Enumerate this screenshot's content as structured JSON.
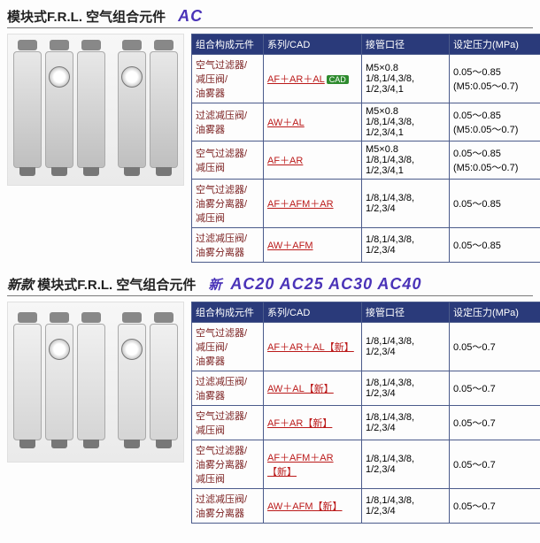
{
  "section1": {
    "title_prefix": "模块式F.R.L. 空气组合元件",
    "title_codes": "AC",
    "headers": [
      "组合构成元件",
      "系列/CAD",
      "接管口径",
      "设定压力(MPa)"
    ],
    "rows": [
      {
        "comp": "空气过滤器/\n减压阀/\n油雾器",
        "series": "AF＋AR＋AL",
        "cad": true,
        "port": "M5×0.8\n1/8,1/4,3/8,\n1/2,3/4,1",
        "press": "0.05～0.85\n(M5:0.05～0.7)"
      },
      {
        "comp": "过滤减压阀/\n油雾器",
        "series": "AW＋AL",
        "port": "M5×0.8\n1/8,1/4,3/8,\n1/2,3/4,1",
        "press": "0.05～0.85\n(M5:0.05～0.7)"
      },
      {
        "comp": "空气过滤器/\n减压阀",
        "series": "AF＋AR",
        "port": "M5×0.8\n1/8,1/4,3/8,\n1/2,3/4,1",
        "press": "0.05～0.85\n(M5:0.05～0.7)"
      },
      {
        "comp": "空气过滤器/\n油雾分离器/\n减压阀",
        "series": "AF＋AFM＋AR",
        "port": "1/8,1/4,3/8,\n1/2,3/4",
        "press": "0.05～0.85"
      },
      {
        "comp": "过滤减压阀/\n油雾分离器",
        "series": "AW＋AFM",
        "port": "1/8,1/4,3/8,\n1/2,3/4",
        "press": "0.05～0.85"
      }
    ]
  },
  "section2": {
    "title_new": "新款",
    "title_prefix": "模块式F.R.L. 空气组合元件",
    "title_newmark": "新",
    "title_codes": "AC20 AC25 AC30 AC40",
    "headers": [
      "组合构成元件",
      "系列/CAD",
      "接管口径",
      "设定压力(MPa)"
    ],
    "new_suffix": "【新】",
    "rows": [
      {
        "comp": "空气过滤器/\n减压阀/\n油雾器",
        "series": "AF＋AR＋AL",
        "port": "1/8,1/4,3/8,\n1/2,3/4",
        "press": "0.05～0.7"
      },
      {
        "comp": "过滤减压阀/\n油雾器",
        "series": "AW＋AL",
        "port": "1/8,1/4,3/8,\n1/2,3/4",
        "press": "0.05～0.7"
      },
      {
        "comp": "空气过滤器/\n减压阀",
        "series": "AF＋AR",
        "port": "1/8,1/4,3/8,\n1/2,3/4",
        "press": "0.05～0.7"
      },
      {
        "comp": "空气过滤器/\n油雾分离器/\n减压阀",
        "series": "AF＋AFM＋AR",
        "port": "1/8,1/4,3/8,\n1/2,3/4",
        "press": "0.05～0.7"
      },
      {
        "comp": "过滤减压阀/\n油雾分离器",
        "series": "AW＋AFM",
        "port": "1/8,1/4,3/8,\n1/2,3/4",
        "press": "0.05～0.7"
      }
    ]
  }
}
